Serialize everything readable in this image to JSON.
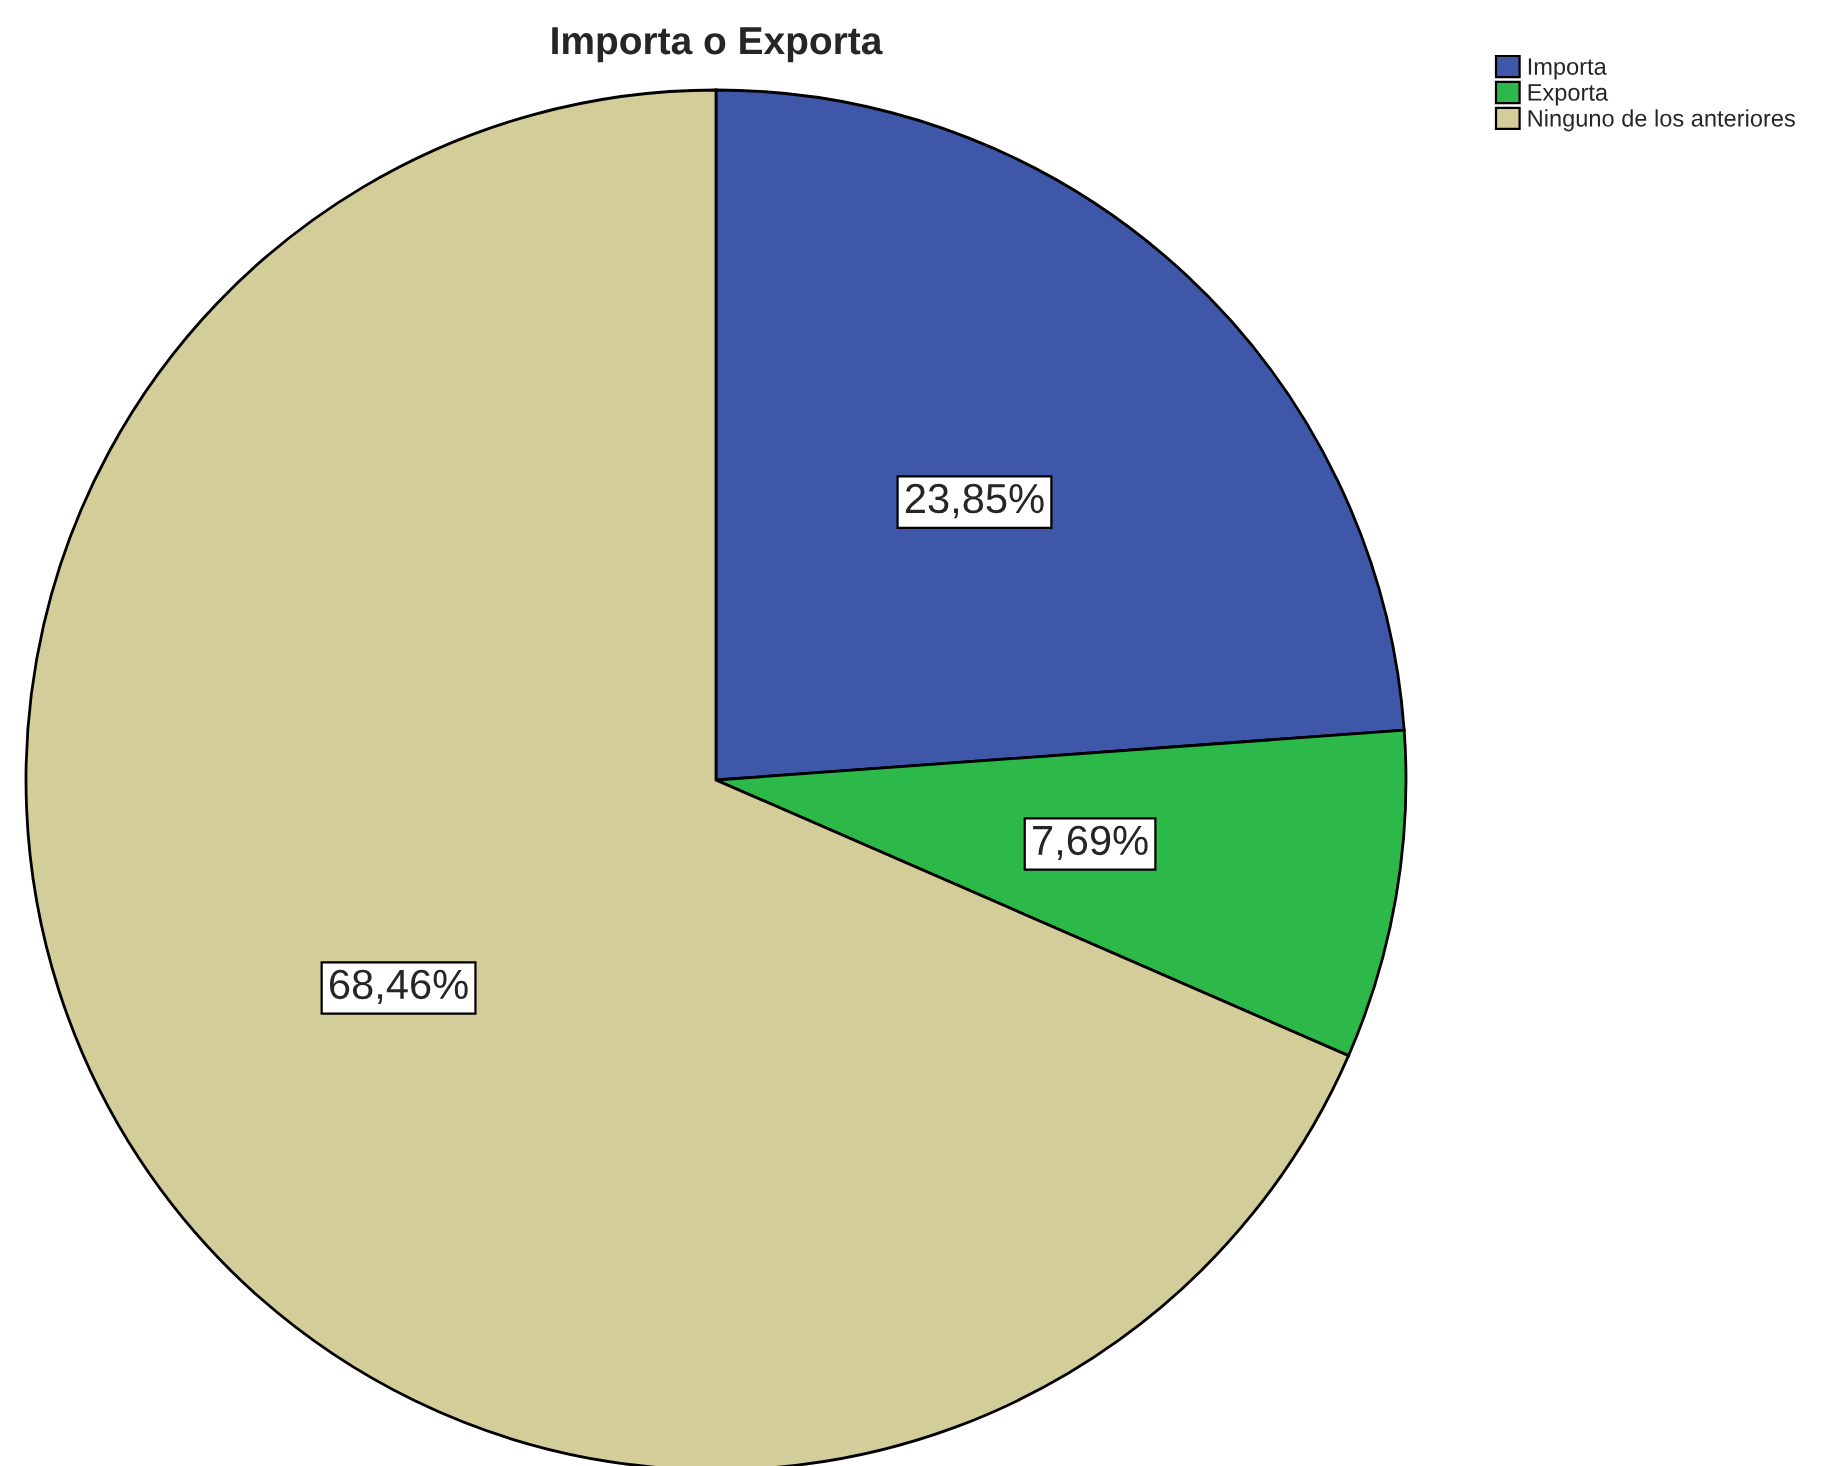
{
  "chart_data": {
    "type": "pie",
    "title": "Importa o Exporta",
    "categories": [
      "Importa",
      "Exporta",
      "Ninguno de los anteriores"
    ],
    "values": [
      23.85,
      7.69,
      68.46
    ],
    "colors": [
      "#3f57a8",
      "#2db84a",
      "#d3ce99"
    ],
    "value_labels": [
      "23,85%",
      "7,69%",
      "68,46%"
    ],
    "legend": "top right"
  }
}
